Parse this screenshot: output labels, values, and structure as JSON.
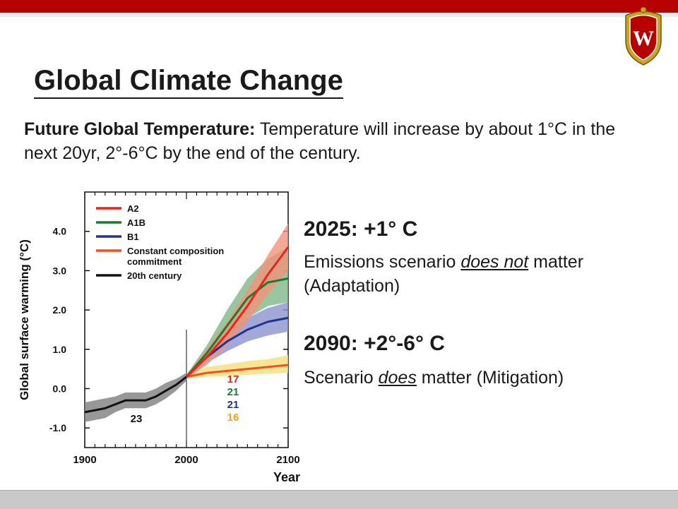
{
  "slide": {
    "title": "Global Climate Change",
    "intro_bold": "Future Global Temperature:",
    "intro_text": "  Temperature will increase by about 1°C in the next 20yr, 2°-6°C by the end of the century.",
    "block1": {
      "heading": "2025:  +1° C",
      "line_pre": "Emissions scenario ",
      "line_emph": "does not",
      "line_post": " matter (Adaptation)"
    },
    "block2": {
      "heading": "2090:  +2°-6° C",
      "line_pre": "Scenario ",
      "line_emph": "does",
      "line_post": " matter (Mitigation)"
    },
    "colors": {
      "accent": "#b70101"
    },
    "crest_icon": "university-crest-icon"
  },
  "chart_data": {
    "type": "line",
    "title": "",
    "xlabel": "Year",
    "ylabel": "Global surface warming (°C)",
    "xlim": [
      1900,
      2100
    ],
    "ylim": [
      -1.5,
      5.0
    ],
    "x_ticks": [
      1900,
      2000,
      2100
    ],
    "y_ticks": [
      "4.0",
      "3.0",
      "2.0",
      "1.0",
      "0.0",
      "-1.0"
    ],
    "y_tick_values": [
      4.0,
      3.0,
      2.0,
      1.0,
      0.0,
      -1.0
    ],
    "legend_position": "top-left",
    "series": [
      {
        "name": "A2",
        "color": "#e8251b",
        "x": [
          2000,
          2020,
          2040,
          2060,
          2080,
          2100
        ],
        "y": [
          0.3,
          0.8,
          1.4,
          2.1,
          2.9,
          3.6
        ],
        "low": [
          0.25,
          0.6,
          1.1,
          1.7,
          2.4,
          3.0
        ],
        "high": [
          0.35,
          1.0,
          1.7,
          2.5,
          3.4,
          4.2
        ]
      },
      {
        "name": "A1B",
        "color": "#1e7b2e",
        "x": [
          2000,
          2020,
          2040,
          2060,
          2080,
          2100
        ],
        "y": [
          0.3,
          0.9,
          1.6,
          2.3,
          2.7,
          2.8
        ],
        "low": [
          0.25,
          0.7,
          1.2,
          1.8,
          2.1,
          2.2
        ],
        "high": [
          0.35,
          1.1,
          2.0,
          2.8,
          3.3,
          3.6
        ]
      },
      {
        "name": "B1",
        "color": "#22338f",
        "x": [
          2000,
          2020,
          2040,
          2060,
          2080,
          2100
        ],
        "y": [
          0.3,
          0.8,
          1.2,
          1.5,
          1.7,
          1.8
        ],
        "low": [
          0.25,
          0.65,
          0.95,
          1.2,
          1.35,
          1.45
        ],
        "high": [
          0.35,
          0.95,
          1.45,
          1.8,
          2.05,
          2.2
        ]
      },
      {
        "name": "Constant composition commitment",
        "color": "#f2501e",
        "x": [
          2000,
          2020,
          2040,
          2060,
          2080,
          2100
        ],
        "y": [
          0.3,
          0.4,
          0.45,
          0.5,
          0.55,
          0.6
        ],
        "low": [
          0.25,
          0.3,
          0.32,
          0.35,
          0.38,
          0.4
        ],
        "high": [
          0.35,
          0.55,
          0.62,
          0.7,
          0.75,
          0.85
        ]
      },
      {
        "name": "20th century",
        "color": "#111111",
        "x": [
          1900,
          1910,
          1920,
          1930,
          1940,
          1950,
          1960,
          1970,
          1980,
          1990,
          2000
        ],
        "y": [
          -0.6,
          -0.55,
          -0.5,
          -0.4,
          -0.3,
          -0.3,
          -0.3,
          -0.2,
          -0.05,
          0.1,
          0.3
        ],
        "low": [
          -0.85,
          -0.8,
          -0.75,
          -0.6,
          -0.5,
          -0.5,
          -0.5,
          -0.4,
          -0.25,
          -0.05,
          0.2
        ],
        "high": [
          -0.35,
          -0.3,
          -0.25,
          -0.2,
          -0.1,
          -0.1,
          -0.1,
          0.0,
          0.15,
          0.25,
          0.4
        ]
      }
    ],
    "band_colors": {
      "A2": "#f0937a",
      "A1B": "#7fb888",
      "B1": "#8b93d0",
      "Constant composition commitment": "#f3df7a",
      "20th century": "#7e7e7e"
    },
    "annotations": [
      {
        "text": "17",
        "color": "#e8251b"
      },
      {
        "text": "21",
        "color": "#1e7b2e"
      },
      {
        "text": "21",
        "color": "#22338f"
      },
      {
        "text": "16",
        "color": "#f0a020"
      },
      {
        "text": "23",
        "color": "#111111"
      }
    ]
  }
}
